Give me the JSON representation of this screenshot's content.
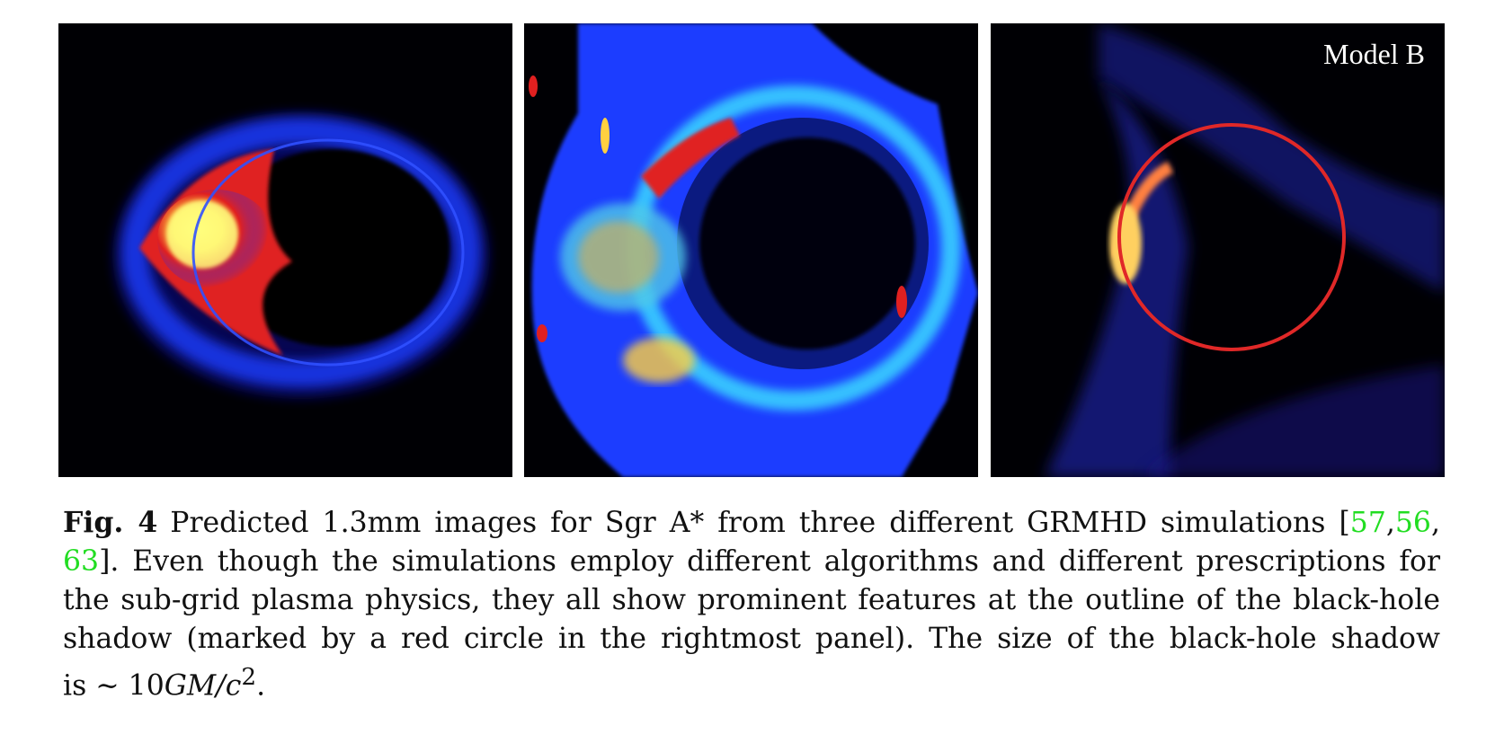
{
  "figure": {
    "panels": [
      {
        "name": "panel-left"
      },
      {
        "name": "panel-middle"
      },
      {
        "name": "panel-right",
        "label": "Model B"
      }
    ],
    "colors": {
      "background": "#000004",
      "blue": "#1a3cff",
      "cyan": "#3ad8ff",
      "red": "#e02020",
      "yellow": "#ffff60",
      "shadow_circle": "#e02828",
      "citation": "#22dd22"
    }
  },
  "caption": {
    "fig_label": "Fig. 4",
    "line1_text": "Predicted 1.3mm images for Sgr A* from three different GRMHD simulations [",
    "cite1": "57",
    "sep1": ",",
    "cite2": "56",
    "sep2": ",",
    "cite3": "63",
    "line2_text": "]. Even though the simulations employ different algorithms and different prescriptions for",
    "line3_text": "the sub-grid plasma physics, they all show prominent features at the outline of the black-hole",
    "line4_text": "shadow (marked by a red circle in the rightmost panel). The size of the black-hole shadow",
    "line5_prefix": "is ∼ 10",
    "line5_math": "GM/c",
    "line5_sup": "2",
    "line5_suffix": "."
  }
}
